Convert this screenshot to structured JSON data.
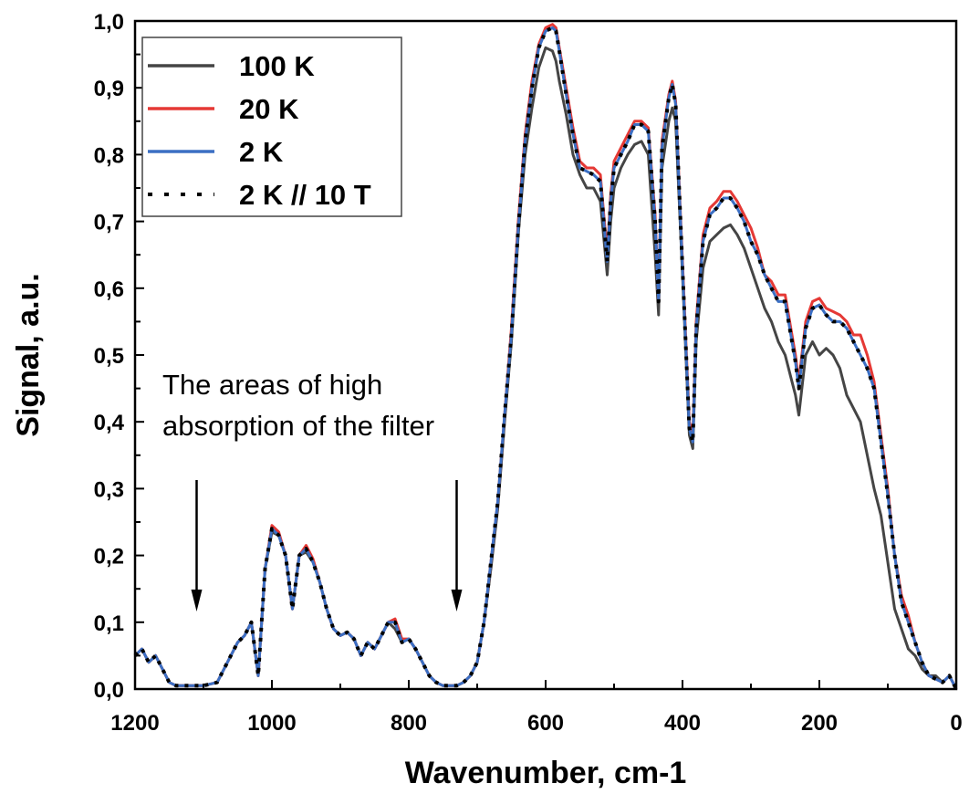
{
  "chart_data": {
    "type": "line",
    "title": "",
    "xlabel": "Wavenumber, cm-1",
    "ylabel": "Signal, a.u.",
    "xlim": [
      1200,
      0
    ],
    "ylim": [
      0,
      1.0
    ],
    "x_reversed": true,
    "x_ticks": [
      1200,
      1000,
      800,
      600,
      400,
      200,
      0
    ],
    "x_tick_labels": [
      "1200",
      "1000",
      "800",
      "600",
      "400",
      "200",
      "0"
    ],
    "y_ticks": [
      0,
      0.1,
      0.2,
      0.3,
      0.4,
      0.5,
      0.6,
      0.7,
      0.8,
      0.9,
      1.0
    ],
    "y_tick_labels": [
      "0,0",
      "0,1",
      "0,2",
      "0,3",
      "0,4",
      "0,5",
      "0,6",
      "0,7",
      "0,8",
      "0,9",
      "1,0"
    ],
    "grid": false,
    "legend_position": "top-left",
    "annotation": {
      "lines": [
        "The areas of high",
        "absorption of the filter"
      ],
      "arrows_at_x": [
        1110,
        730
      ]
    },
    "series": [
      {
        "name": "100 K",
        "color": "#454545",
        "style": "solid",
        "x": [
          1200,
          1190,
          1180,
          1170,
          1160,
          1150,
          1140,
          1120,
          1100,
          1080,
          1060,
          1050,
          1040,
          1030,
          1020,
          1010,
          1000,
          990,
          980,
          970,
          960,
          950,
          940,
          930,
          920,
          910,
          900,
          890,
          880,
          870,
          860,
          850,
          840,
          830,
          820,
          810,
          800,
          790,
          780,
          770,
          760,
          750,
          740,
          730,
          720,
          710,
          700,
          690,
          680,
          670,
          660,
          650,
          640,
          630,
          620,
          610,
          600,
          590,
          585,
          580,
          570,
          560,
          550,
          540,
          530,
          520,
          510,
          505,
          500,
          490,
          480,
          470,
          460,
          450,
          440,
          435,
          430,
          420,
          415,
          410,
          400,
          390,
          385,
          380,
          370,
          360,
          350,
          340,
          330,
          320,
          310,
          300,
          290,
          280,
          270,
          260,
          250,
          240,
          235,
          230,
          220,
          210,
          200,
          190,
          180,
          170,
          160,
          150,
          140,
          130,
          120,
          110,
          100,
          90,
          80,
          70,
          60,
          50,
          40,
          30,
          20,
          10,
          0
        ],
        "y": [
          0.05,
          0.06,
          0.04,
          0.05,
          0.03,
          0.01,
          0.005,
          0.005,
          0.005,
          0.01,
          0.05,
          0.07,
          0.08,
          0.1,
          0.02,
          0.18,
          0.235,
          0.23,
          0.2,
          0.12,
          0.2,
          0.205,
          0.19,
          0.16,
          0.12,
          0.09,
          0.08,
          0.085,
          0.075,
          0.05,
          0.07,
          0.06,
          0.08,
          0.1,
          0.09,
          0.07,
          0.075,
          0.06,
          0.04,
          0.02,
          0.01,
          0.005,
          0.005,
          0.005,
          0.01,
          0.02,
          0.04,
          0.1,
          0.18,
          0.27,
          0.4,
          0.52,
          0.68,
          0.8,
          0.87,
          0.93,
          0.96,
          0.955,
          0.94,
          0.91,
          0.86,
          0.8,
          0.77,
          0.75,
          0.75,
          0.73,
          0.62,
          0.7,
          0.75,
          0.78,
          0.8,
          0.815,
          0.82,
          0.8,
          0.65,
          0.56,
          0.78,
          0.85,
          0.87,
          0.85,
          0.62,
          0.38,
          0.36,
          0.52,
          0.63,
          0.67,
          0.68,
          0.69,
          0.695,
          0.68,
          0.66,
          0.63,
          0.6,
          0.57,
          0.55,
          0.52,
          0.5,
          0.46,
          0.44,
          0.41,
          0.5,
          0.52,
          0.5,
          0.51,
          0.5,
          0.48,
          0.44,
          0.42,
          0.4,
          0.35,
          0.3,
          0.26,
          0.19,
          0.12,
          0.09,
          0.06,
          0.05,
          0.03,
          0.02,
          0.02,
          0.01,
          0.02,
          0.0
        ]
      },
      {
        "name": "20 K",
        "color": "#e53935",
        "style": "solid",
        "x": [
          1200,
          1190,
          1180,
          1170,
          1160,
          1150,
          1140,
          1120,
          1100,
          1080,
          1060,
          1050,
          1040,
          1030,
          1020,
          1010,
          1000,
          990,
          980,
          970,
          960,
          950,
          940,
          930,
          920,
          910,
          900,
          890,
          880,
          870,
          860,
          850,
          840,
          830,
          820,
          810,
          800,
          790,
          780,
          770,
          760,
          750,
          740,
          730,
          720,
          710,
          700,
          690,
          680,
          670,
          660,
          650,
          640,
          630,
          620,
          610,
          600,
          590,
          585,
          580,
          570,
          560,
          550,
          540,
          530,
          520,
          510,
          505,
          500,
          490,
          480,
          470,
          460,
          450,
          440,
          435,
          430,
          420,
          415,
          410,
          400,
          390,
          385,
          380,
          370,
          360,
          350,
          340,
          330,
          320,
          310,
          300,
          290,
          280,
          270,
          260,
          250,
          240,
          235,
          230,
          220,
          210,
          200,
          190,
          180,
          170,
          160,
          150,
          140,
          130,
          120,
          110,
          100,
          90,
          80,
          70,
          60,
          50,
          40,
          30,
          20,
          10,
          0
        ],
        "y": [
          0.05,
          0.06,
          0.04,
          0.05,
          0.03,
          0.01,
          0.005,
          0.005,
          0.005,
          0.01,
          0.05,
          0.07,
          0.08,
          0.1,
          0.02,
          0.18,
          0.245,
          0.235,
          0.2,
          0.12,
          0.2,
          0.215,
          0.195,
          0.16,
          0.12,
          0.09,
          0.08,
          0.085,
          0.075,
          0.05,
          0.07,
          0.06,
          0.08,
          0.1,
          0.105,
          0.075,
          0.075,
          0.06,
          0.04,
          0.02,
          0.01,
          0.005,
          0.005,
          0.005,
          0.01,
          0.02,
          0.04,
          0.1,
          0.19,
          0.28,
          0.41,
          0.54,
          0.7,
          0.83,
          0.91,
          0.965,
          0.99,
          0.995,
          0.99,
          0.96,
          0.9,
          0.84,
          0.79,
          0.78,
          0.78,
          0.77,
          0.65,
          0.74,
          0.79,
          0.81,
          0.83,
          0.85,
          0.85,
          0.84,
          0.71,
          0.58,
          0.82,
          0.89,
          0.91,
          0.88,
          0.64,
          0.4,
          0.38,
          0.55,
          0.68,
          0.72,
          0.73,
          0.745,
          0.745,
          0.73,
          0.71,
          0.69,
          0.66,
          0.62,
          0.61,
          0.59,
          0.59,
          0.53,
          0.5,
          0.46,
          0.55,
          0.58,
          0.585,
          0.57,
          0.565,
          0.56,
          0.55,
          0.53,
          0.53,
          0.5,
          0.46,
          0.38,
          0.3,
          0.2,
          0.14,
          0.11,
          0.07,
          0.04,
          0.02,
          0.015,
          0.01,
          0.02,
          0.0
        ]
      },
      {
        "name": "2 K",
        "color": "#3b6fc4",
        "style": "solid",
        "x": [
          1200,
          1190,
          1180,
          1170,
          1160,
          1150,
          1140,
          1120,
          1100,
          1080,
          1060,
          1050,
          1040,
          1030,
          1020,
          1010,
          1000,
          990,
          980,
          970,
          960,
          950,
          940,
          930,
          920,
          910,
          900,
          890,
          880,
          870,
          860,
          850,
          840,
          830,
          820,
          810,
          800,
          790,
          780,
          770,
          760,
          750,
          740,
          730,
          720,
          710,
          700,
          690,
          680,
          670,
          660,
          650,
          640,
          630,
          620,
          610,
          600,
          590,
          585,
          580,
          570,
          560,
          550,
          540,
          530,
          520,
          510,
          505,
          500,
          490,
          480,
          470,
          460,
          450,
          440,
          435,
          430,
          420,
          415,
          410,
          400,
          390,
          385,
          380,
          370,
          360,
          350,
          340,
          330,
          320,
          310,
          300,
          290,
          280,
          270,
          260,
          250,
          240,
          235,
          230,
          220,
          210,
          200,
          190,
          180,
          170,
          160,
          150,
          140,
          130,
          120,
          110,
          100,
          90,
          80,
          70,
          60,
          50,
          40,
          30,
          20,
          10,
          0
        ],
        "y": [
          0.05,
          0.06,
          0.04,
          0.05,
          0.03,
          0.01,
          0.005,
          0.005,
          0.005,
          0.01,
          0.05,
          0.07,
          0.08,
          0.1,
          0.02,
          0.18,
          0.24,
          0.23,
          0.2,
          0.12,
          0.2,
          0.21,
          0.19,
          0.16,
          0.12,
          0.09,
          0.08,
          0.085,
          0.075,
          0.05,
          0.07,
          0.06,
          0.08,
          0.1,
          0.1,
          0.07,
          0.075,
          0.06,
          0.04,
          0.02,
          0.01,
          0.005,
          0.005,
          0.005,
          0.01,
          0.02,
          0.04,
          0.1,
          0.19,
          0.28,
          0.41,
          0.53,
          0.69,
          0.82,
          0.9,
          0.96,
          0.985,
          0.99,
          0.985,
          0.955,
          0.89,
          0.83,
          0.78,
          0.775,
          0.77,
          0.76,
          0.64,
          0.73,
          0.78,
          0.8,
          0.82,
          0.845,
          0.845,
          0.835,
          0.7,
          0.58,
          0.81,
          0.885,
          0.905,
          0.875,
          0.63,
          0.39,
          0.37,
          0.54,
          0.67,
          0.71,
          0.72,
          0.735,
          0.735,
          0.72,
          0.7,
          0.67,
          0.65,
          0.62,
          0.6,
          0.58,
          0.58,
          0.52,
          0.49,
          0.45,
          0.54,
          0.57,
          0.575,
          0.56,
          0.55,
          0.55,
          0.54,
          0.52,
          0.5,
          0.48,
          0.45,
          0.37,
          0.29,
          0.2,
          0.13,
          0.1,
          0.07,
          0.04,
          0.02,
          0.015,
          0.01,
          0.02,
          0.0
        ]
      },
      {
        "name": "2 K // 10 T",
        "color": "#000000",
        "style": "dotted",
        "x": [
          1200,
          1190,
          1180,
          1170,
          1160,
          1150,
          1140,
          1120,
          1100,
          1080,
          1060,
          1050,
          1040,
          1030,
          1020,
          1010,
          1000,
          990,
          980,
          970,
          960,
          950,
          940,
          930,
          920,
          910,
          900,
          890,
          880,
          870,
          860,
          850,
          840,
          830,
          820,
          810,
          800,
          790,
          780,
          770,
          760,
          750,
          740,
          730,
          720,
          710,
          700,
          690,
          680,
          670,
          660,
          650,
          640,
          630,
          620,
          610,
          600,
          590,
          585,
          580,
          570,
          560,
          550,
          540,
          530,
          520,
          510,
          505,
          500,
          490,
          480,
          470,
          460,
          450,
          440,
          435,
          430,
          420,
          415,
          410,
          400,
          390,
          385,
          380,
          370,
          360,
          350,
          340,
          330,
          320,
          310,
          300,
          290,
          280,
          270,
          260,
          250,
          240,
          235,
          230,
          220,
          210,
          200,
          190,
          180,
          170,
          160,
          150,
          140,
          130,
          120,
          110,
          100,
          90,
          80,
          70,
          60,
          50,
          40,
          30,
          20,
          10,
          0
        ],
        "y": [
          0.05,
          0.06,
          0.04,
          0.05,
          0.03,
          0.01,
          0.005,
          0.005,
          0.005,
          0.01,
          0.05,
          0.07,
          0.08,
          0.1,
          0.02,
          0.18,
          0.24,
          0.23,
          0.2,
          0.12,
          0.2,
          0.21,
          0.19,
          0.16,
          0.12,
          0.09,
          0.08,
          0.085,
          0.075,
          0.05,
          0.07,
          0.06,
          0.08,
          0.1,
          0.1,
          0.07,
          0.075,
          0.06,
          0.04,
          0.02,
          0.01,
          0.005,
          0.005,
          0.005,
          0.01,
          0.02,
          0.04,
          0.1,
          0.19,
          0.28,
          0.41,
          0.53,
          0.69,
          0.82,
          0.9,
          0.96,
          0.985,
          0.99,
          0.985,
          0.955,
          0.89,
          0.83,
          0.78,
          0.775,
          0.77,
          0.76,
          0.64,
          0.73,
          0.78,
          0.8,
          0.82,
          0.845,
          0.845,
          0.835,
          0.7,
          0.58,
          0.81,
          0.885,
          0.905,
          0.875,
          0.63,
          0.39,
          0.37,
          0.54,
          0.67,
          0.71,
          0.72,
          0.735,
          0.735,
          0.72,
          0.7,
          0.67,
          0.65,
          0.62,
          0.6,
          0.58,
          0.58,
          0.52,
          0.49,
          0.45,
          0.54,
          0.57,
          0.575,
          0.56,
          0.55,
          0.55,
          0.54,
          0.52,
          0.5,
          0.48,
          0.45,
          0.37,
          0.29,
          0.2,
          0.13,
          0.1,
          0.07,
          0.04,
          0.02,
          0.015,
          0.01,
          0.02,
          0.0
        ]
      }
    ]
  }
}
